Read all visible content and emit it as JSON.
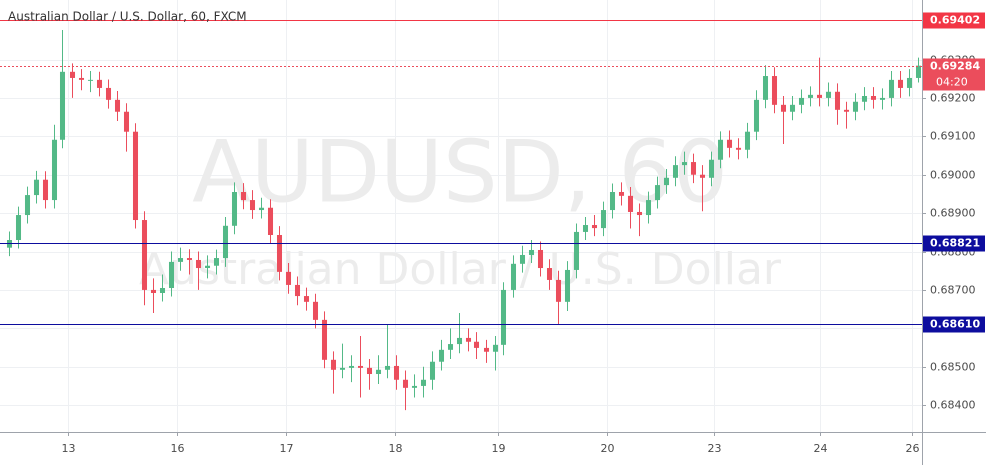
{
  "chart_data": {
    "type": "candlestick",
    "title": "Australian Dollar / U.S. Dollar, 60, FXCM",
    "watermark": "AUDUSD, 60",
    "watermark_subtitle": "Australian Dollar / U.S. Dollar",
    "up_color": "#53b987",
    "down_color": "#eb4d5c",
    "grid": true,
    "xlim": [
      -0.5,
      101.5
    ],
    "xticks": [
      {
        "value": 6.6,
        "label": "13"
      },
      {
        "value": 18.7,
        "label": "16"
      },
      {
        "value": 30.8,
        "label": "17"
      },
      {
        "value": 42.9,
        "label": "18"
      },
      {
        "value": 54.4,
        "label": "19"
      },
      {
        "value": 66.5,
        "label": "20"
      },
      {
        "value": 78.4,
        "label": "23"
      },
      {
        "value": 90.2,
        "label": "24"
      },
      {
        "value": 100.4,
        "label": "26"
      }
    ],
    "ylim": [
      0.6833,
      0.69455
    ],
    "yticks": [
      {
        "value": 0.684,
        "label": "0.68400"
      },
      {
        "value": 0.685,
        "label": "0.68500"
      },
      {
        "value": 0.686,
        "label": "0.68600"
      },
      {
        "value": 0.687,
        "label": "0.68700"
      },
      {
        "value": 0.688,
        "label": "0.68800"
      },
      {
        "value": 0.689,
        "label": "0.68900"
      },
      {
        "value": 0.69,
        "label": "0.69000"
      },
      {
        "value": 0.691,
        "label": "0.69100"
      },
      {
        "value": 0.692,
        "label": "0.69200"
      },
      {
        "value": 0.693,
        "label": "0.69300"
      }
    ],
    "open": [
      0.6881,
      0.6883,
      0.68895,
      0.68947,
      0.68987,
      0.68934,
      0.69091,
      0.69268,
      0.69252,
      0.69247,
      0.69247,
      0.69226,
      0.69195,
      0.69164,
      0.69112,
      0.68882,
      0.687,
      0.68692,
      0.68705,
      0.68773,
      0.68783,
      0.68778,
      0.68757,
      0.68763,
      0.68783,
      0.68867,
      0.68955,
      0.68934,
      0.68908,
      0.68914,
      0.68843,
      0.68747,
      0.68713,
      0.68684,
      0.68669,
      0.68622,
      0.68518,
      0.68492,
      0.68497,
      0.68502,
      0.68497,
      0.68481,
      0.68492,
      0.68502,
      0.68466,
      0.68445,
      0.6845,
      0.68466,
      0.68513,
      0.68544,
      0.68559,
      0.68575,
      0.68565,
      0.68549,
      0.68539,
      0.68557,
      0.687,
      0.68768,
      0.68791,
      0.68804,
      0.68757,
      0.68726,
      0.68669,
      0.68752,
      0.68851,
      0.68869,
      0.68861,
      0.68908,
      0.68955,
      0.68945,
      0.68903,
      0.68895,
      0.68934,
      0.68973,
      0.68992,
      0.69025,
      0.69033,
      0.69,
      0.68992,
      0.69039,
      0.69091,
      0.6907,
      0.69065,
      0.69112,
      0.69195,
      0.69257,
      0.69182,
      0.69164,
      0.69182,
      0.692,
      0.69208,
      0.692,
      0.69216,
      0.69169,
      0.69164,
      0.6919,
      0.69205,
      0.69195,
      0.692,
      0.69247,
      0.69226,
      0.69252
    ],
    "high": [
      0.68852,
      0.68917,
      0.68969,
      0.6901,
      0.69009,
      0.6913,
      0.69377,
      0.6929,
      0.69275,
      0.6927,
      0.69268,
      0.69248,
      0.69218,
      0.69186,
      0.69134,
      0.68905,
      0.6873,
      0.6874,
      0.688,
      0.6881,
      0.68806,
      0.688,
      0.6879,
      0.68805,
      0.6889,
      0.6898,
      0.68978,
      0.6896,
      0.6894,
      0.68936,
      0.68866,
      0.6877,
      0.68735,
      0.68706,
      0.6869,
      0.68644,
      0.6854,
      0.6856,
      0.6853,
      0.6858,
      0.6852,
      0.6853,
      0.6861,
      0.6853,
      0.6849,
      0.6848,
      0.685,
      0.6854,
      0.6857,
      0.686,
      0.6864,
      0.686,
      0.6859,
      0.6857,
      0.6858,
      0.6872,
      0.6879,
      0.68815,
      0.6883,
      0.68826,
      0.6878,
      0.6875,
      0.68775,
      0.68873,
      0.6889,
      0.68895,
      0.6893,
      0.68977,
      0.6898,
      0.68968,
      0.68925,
      0.68956,
      0.68995,
      0.69015,
      0.69048,
      0.6906,
      0.69055,
      0.69025,
      0.6906,
      0.69113,
      0.69115,
      0.69095,
      0.69135,
      0.6922,
      0.69285,
      0.6928,
      0.69205,
      0.69205,
      0.69222,
      0.6923,
      0.69305,
      0.6924,
      0.69238,
      0.6919,
      0.69212,
      0.69228,
      0.69228,
      0.69225,
      0.6927,
      0.6927,
      0.69275,
      0.69305
    ],
    "low": [
      0.68788,
      0.68808,
      0.68873,
      0.68925,
      0.68912,
      0.68912,
      0.69069,
      0.692,
      0.6922,
      0.69215,
      0.69204,
      0.69172,
      0.6914,
      0.6906,
      0.6886,
      0.6866,
      0.6864,
      0.6867,
      0.68683,
      0.6875,
      0.6874,
      0.687,
      0.6873,
      0.6874,
      0.6876,
      0.68845,
      0.6891,
      0.68885,
      0.68886,
      0.6882,
      0.68725,
      0.6869,
      0.6866,
      0.68646,
      0.686,
      0.68496,
      0.6843,
      0.6847,
      0.6846,
      0.6842,
      0.6844,
      0.68455,
      0.6847,
      0.6844,
      0.68387,
      0.6842,
      0.6842,
      0.6844,
      0.6849,
      0.6852,
      0.68535,
      0.6854,
      0.6852,
      0.6851,
      0.6849,
      0.6853,
      0.6868,
      0.68745,
      0.6877,
      0.68735,
      0.687,
      0.6861,
      0.68645,
      0.6873,
      0.6883,
      0.6884,
      0.6884,
      0.68886,
      0.6892,
      0.6886,
      0.6884,
      0.68873,
      0.68912,
      0.6895,
      0.6897,
      0.69,
      0.68978,
      0.68905,
      0.6897,
      0.69017,
      0.69045,
      0.6904,
      0.69043,
      0.6909,
      0.69173,
      0.6916,
      0.6908,
      0.69142,
      0.6916,
      0.69178,
      0.69178,
      0.69178,
      0.6913,
      0.6912,
      0.69142,
      0.69168,
      0.69172,
      0.6917,
      0.69178,
      0.692,
      0.69204,
      0.6924
    ],
    "close": [
      0.6883,
      0.68895,
      0.68947,
      0.68987,
      0.68934,
      0.69091,
      0.69268,
      0.69252,
      0.69247,
      0.69247,
      0.69226,
      0.69195,
      0.69164,
      0.69112,
      0.68882,
      0.687,
      0.68692,
      0.68705,
      0.68773,
      0.68783,
      0.68778,
      0.68757,
      0.68763,
      0.68783,
      0.68867,
      0.68955,
      0.68934,
      0.68908,
      0.68914,
      0.68843,
      0.68747,
      0.68713,
      0.68684,
      0.68669,
      0.68622,
      0.68518,
      0.68492,
      0.68497,
      0.68502,
      0.68497,
      0.68481,
      0.68492,
      0.68502,
      0.68466,
      0.68445,
      0.6845,
      0.68466,
      0.68513,
      0.68544,
      0.68559,
      0.68575,
      0.68565,
      0.68549,
      0.68539,
      0.68557,
      0.687,
      0.68768,
      0.68791,
      0.68804,
      0.68757,
      0.68726,
      0.68669,
      0.68752,
      0.68851,
      0.68869,
      0.68861,
      0.68908,
      0.68955,
      0.68945,
      0.68903,
      0.68895,
      0.68934,
      0.68973,
      0.68992,
      0.69025,
      0.69033,
      0.69,
      0.68992,
      0.69039,
      0.69091,
      0.6907,
      0.69065,
      0.69112,
      0.69195,
      0.69257,
      0.69182,
      0.69164,
      0.69182,
      0.692,
      0.69208,
      0.692,
      0.69216,
      0.69169,
      0.69164,
      0.6919,
      0.69205,
      0.69195,
      0.692,
      0.69247,
      0.69226,
      0.69252,
      0.69284
    ],
    "levels": [
      {
        "value": 0.69402,
        "label": "0.69402",
        "color": "#f23645"
      },
      {
        "value": 0.68821,
        "label": "0.68821",
        "color": "#0d0d9e"
      },
      {
        "value": 0.6861,
        "label": "0.68610",
        "color": "#0d0d9e"
      }
    ],
    "last_price": {
      "value": 0.69284,
      "label": "0.69284",
      "countdown": "04:20",
      "color": "#eb4d5c"
    }
  }
}
